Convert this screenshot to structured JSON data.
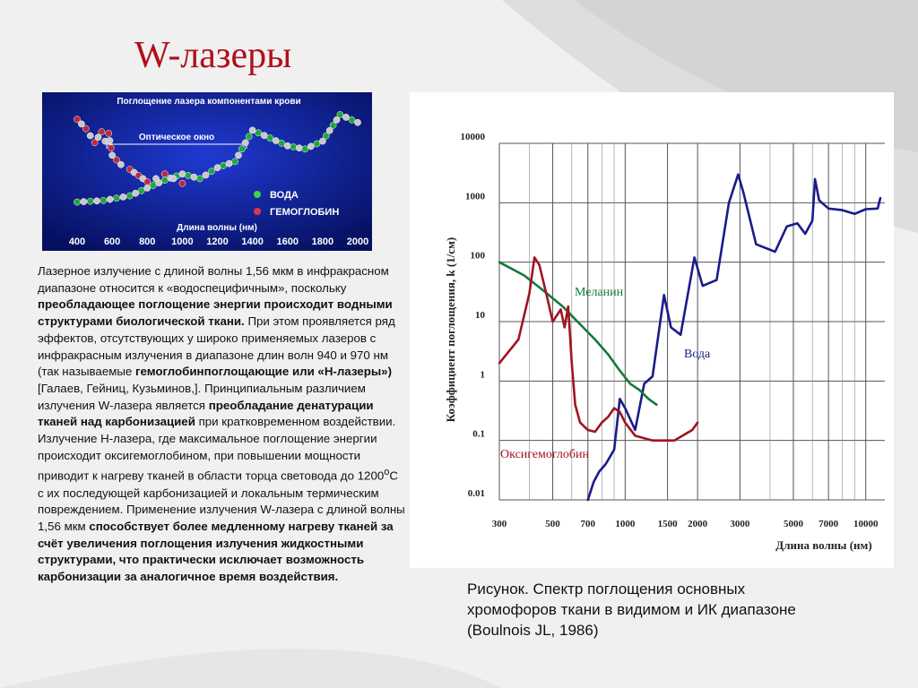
{
  "slide": {
    "title": "W-лазеры",
    "caption": "Рисунок. Спектр поглощения основных хромофоров ткани в видимом и ИК диапазоне (Boulnois JL, 1986)"
  },
  "body": {
    "p1": "Лазерное излучение с длиной волны 1,56 мкм в инфракрасном диапазоне относится к «водоспецифичным», поскольку ",
    "b1": "преобладающее поглощение энергии происходит водными структурами биологической ткани.",
    "p2": " При этом проявляется ряд эффектов, отсутствующих у широко применяемых лазеров с инфракрасным излучения в диапазоне длин волн 940 и 970 нм (так называемые ",
    "b2": "гемоглобинпоглощающие или «Н-лазеры»)",
    "p3": " [Галаев, Гейниц, Кузьминов,]. Принципиальным различием излучения W-лазера является ",
    "b3": "преобладание денатурации тканей над карбонизацией",
    "p4": " при кратковременном воздействии. Излучение Н-лазера, где максимальное поглощение энергии происходит оксигемоглобином, при повышении мощности приводит к нагреву тканей в области торца световода до 1200",
    "sup": "о",
    "p5": "С с их последующей карбонизацией и локальным термическим повреждением. Применение излучения W-лазера с длиной волны 1,56 мкм ",
    "b5": "способствует более медленному нагреву тканей за счёт увеличения поглощения излучения жидкостными структурами, что практически исключает возможность карбонизации за аналогичное время воздействия."
  },
  "colors": {
    "title": "#b0101a",
    "blood_bg": "#0a1a8c",
    "water_small": "#1fa83a",
    "hemoglobin_small": "#c0283a",
    "water_big": "#1b1b8a",
    "melanin": "#137a3a",
    "oxyhemoglobin": "#a01420"
  },
  "chart_data": [
    {
      "type": "line",
      "title": "Поглощение лазера компонентами крови",
      "annotation": "Оптическое окно",
      "xlabel": "Длина волны (нм)",
      "x_ticks": [
        "400",
        "600",
        "800",
        "1000",
        "1200",
        "1400",
        "1600",
        "1800",
        "2000"
      ],
      "xlim": [
        400,
        2000
      ],
      "series": [
        {
          "name": "ВОДА",
          "points": [
            [
              400,
              1.0
            ],
            [
              550,
              1.1
            ],
            [
              700,
              1.4
            ],
            [
              800,
              1.9
            ],
            [
              900,
              2.4
            ],
            [
              1000,
              2.8
            ],
            [
              1100,
              2.5
            ],
            [
              1200,
              3.2
            ],
            [
              1300,
              3.6
            ],
            [
              1400,
              5.6
            ],
            [
              1500,
              5.1
            ],
            [
              1600,
              4.6
            ],
            [
              1700,
              4.4
            ],
            [
              1800,
              4.9
            ],
            [
              1900,
              6.6
            ],
            [
              2000,
              6.1
            ]
          ]
        },
        {
          "name": "ГЕМОГЛОБИН",
          "points": [
            [
              400,
              6.3
            ],
            [
              450,
              5.7
            ],
            [
              500,
              4.8
            ],
            [
              540,
              5.5
            ],
            [
              560,
              4.9
            ],
            [
              580,
              5.4
            ],
            [
              600,
              4.0
            ],
            [
              650,
              3.4
            ],
            [
              700,
              3.1
            ],
            [
              750,
              2.7
            ],
            [
              800,
              2.3
            ],
            [
              850,
              2.5
            ],
            [
              900,
              2.8
            ],
            [
              950,
              2.5
            ],
            [
              1000,
              2.2
            ]
          ]
        }
      ],
      "legend": [
        "ВОДА",
        "ГЕМОГЛОБИН"
      ]
    },
    {
      "type": "line",
      "xlabel": "Длина волны (нм)",
      "ylabel": "Коэффициент поглощения, k (1/см)",
      "x_scale": "log",
      "y_scale": "log",
      "xlim": [
        300,
        12000
      ],
      "ylim": [
        0.01,
        10000
      ],
      "x_ticks": [
        300,
        500,
        700,
        1000,
        1500,
        2000,
        3000,
        5000,
        7000,
        10000
      ],
      "y_ticks": [
        "0.01",
        "0.1",
        "1",
        "10",
        "100",
        "1000",
        "10000"
      ],
      "series": [
        {
          "name": "Вода",
          "points": [
            [
              700,
              0.01
            ],
            [
              740,
              0.02
            ],
            [
              780,
              0.03
            ],
            [
              830,
              0.04
            ],
            [
              900,
              0.07
            ],
            [
              950,
              0.5
            ],
            [
              1000,
              0.35
            ],
            [
              1100,
              0.15
            ],
            [
              1200,
              0.9
            ],
            [
              1300,
              1.2
            ],
            [
              1450,
              28
            ],
            [
              1550,
              8
            ],
            [
              1700,
              6
            ],
            [
              1940,
              120
            ],
            [
              2100,
              40
            ],
            [
              2400,
              50
            ],
            [
              2700,
              1000
            ],
            [
              2950,
              3000
            ],
            [
              3100,
              1500
            ],
            [
              3500,
              200
            ],
            [
              4200,
              150
            ],
            [
              4700,
              400
            ],
            [
              5200,
              450
            ],
            [
              5600,
              300
            ],
            [
              6000,
              500
            ],
            [
              6150,
              2500
            ],
            [
              6400,
              1100
            ],
            [
              7000,
              800
            ],
            [
              8000,
              750
            ],
            [
              9000,
              650
            ],
            [
              10000,
              780
            ],
            [
              11200,
              800
            ],
            [
              11500,
              1200
            ]
          ]
        },
        {
          "name": "Меланин",
          "points": [
            [
              300,
              100
            ],
            [
              380,
              60
            ],
            [
              450,
              35
            ],
            [
              550,
              18
            ],
            [
              650,
              9
            ],
            [
              750,
              5
            ],
            [
              850,
              2.8
            ],
            [
              950,
              1.5
            ],
            [
              1050,
              0.9
            ],
            [
              1150,
              0.7
            ],
            [
              1250,
              0.5
            ],
            [
              1350,
              0.4
            ]
          ]
        },
        {
          "name": "Оксигемоглобин",
          "points": [
            [
              300,
              2
            ],
            [
              360,
              5
            ],
            [
              400,
              30
            ],
            [
              420,
              120
            ],
            [
              440,
              90
            ],
            [
              470,
              30
            ],
            [
              500,
              10
            ],
            [
              540,
              16
            ],
            [
              560,
              8
            ],
            [
              580,
              18
            ],
            [
              600,
              2
            ],
            [
              620,
              0.4
            ],
            [
              650,
              0.2
            ],
            [
              700,
              0.15
            ],
            [
              750,
              0.14
            ],
            [
              800,
              0.2
            ],
            [
              850,
              0.25
            ],
            [
              900,
              0.35
            ],
            [
              950,
              0.3
            ],
            [
              1000,
              0.2
            ],
            [
              1100,
              0.12
            ],
            [
              1300,
              0.1
            ],
            [
              1600,
              0.1
            ],
            [
              1900,
              0.15
            ],
            [
              2000,
              0.2
            ]
          ]
        }
      ],
      "grid": true
    }
  ]
}
